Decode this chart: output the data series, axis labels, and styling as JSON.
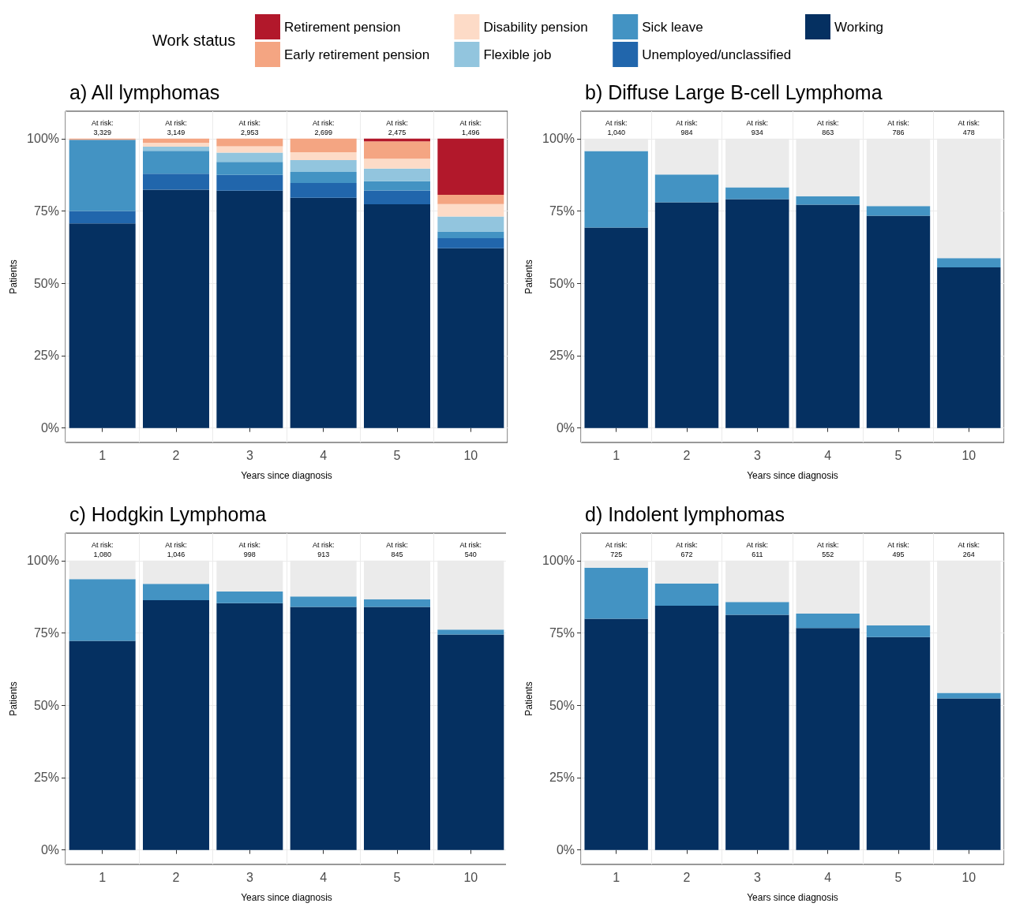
{
  "chart_data": [
    {
      "type": "bar",
      "title": "a) All lymphomas",
      "xlabel": "Years since diagnosis",
      "ylabel": "Patients",
      "legend_title": "Work status",
      "legend": "top",
      "stacked": true,
      "grid": true,
      "categories": [
        "1",
        "2",
        "3",
        "4",
        "5",
        "10"
      ],
      "ylim": [
        -5,
        109.5
      ],
      "yticks": [
        {
          "value": 0,
          "label": "0%"
        },
        {
          "value": 25,
          "label": "25%"
        },
        {
          "value": 50,
          "label": "50%"
        },
        {
          "value": 75,
          "label": "75%"
        },
        {
          "value": 100,
          "label": "100%"
        }
      ],
      "series": [
        {
          "name": "Working",
          "color": "#053061",
          "values": [
            70.7,
            82.4,
            82.0,
            79.6,
            77.3,
            62.1
          ]
        },
        {
          "name": "Unemployed/unclassified",
          "color": "#2166ac",
          "values": [
            4.3,
            5.5,
            5.5,
            5.1,
            4.8,
            3.5
          ]
        },
        {
          "name": "Sick leave",
          "color": "#4393c3",
          "values": [
            24.6,
            7.9,
            4.5,
            3.8,
            3.2,
            2.3
          ]
        },
        {
          "name": "Flexible job",
          "color": "#92c5de",
          "values": [
            0,
            1.4,
            3.2,
            4.1,
            4.4,
            5.2
          ]
        },
        {
          "name": "Disability pension",
          "color": "#fddbc7",
          "values": [
            0,
            1.4,
            2.2,
            2.7,
            3.4,
            4.3
          ]
        },
        {
          "name": "Early retirement pension",
          "color": "#f4a582",
          "values": [
            0.4,
            1.4,
            2.6,
            4.7,
            6.0,
            3.2
          ]
        },
        {
          "name": "Retirement pension",
          "color": "#b2182b",
          "values": [
            0,
            0,
            0,
            0,
            0.9,
            19.4
          ]
        }
      ],
      "annotations": [
        "At risk:\n3,329",
        "At risk:\n3,149",
        "At risk:\n2,953",
        "At risk:\n2,699",
        "At risk:\n2,475",
        "At risk:\n1,496"
      ]
    },
    {
      "type": "bar",
      "title": "b) Diffuse Large B-cell Lymphoma",
      "xlabel": "Years since diagnosis",
      "ylabel": "Patients",
      "stacked": true,
      "grid": true,
      "categories": [
        "1",
        "2",
        "3",
        "4",
        "5",
        "10"
      ],
      "ylim": [
        -5,
        109.5
      ],
      "yticks": [
        {
          "value": 0,
          "label": "0%"
        },
        {
          "value": 25,
          "label": "25%"
        },
        {
          "value": 50,
          "label": "50%"
        },
        {
          "value": 75,
          "label": "75%"
        },
        {
          "value": 100,
          "label": "100%"
        }
      ],
      "series": [
        {
          "color": "#053061",
          "values": [
            69.3,
            78.0,
            79.1,
            77.2,
            73.4,
            55.5
          ]
        },
        {
          "color": "#4393c3",
          "values": [
            26.4,
            9.6,
            4.1,
            2.9,
            3.3,
            3.2
          ]
        },
        {
          "color": "#ebebeb",
          "values": [
            4.3,
            12.4,
            16.8,
            19.9,
            23.3,
            41.3
          ]
        }
      ],
      "annotations": [
        "At risk:\n1,040",
        "At risk:\n984",
        "At risk:\n934",
        "At risk:\n863",
        "At risk:\n786",
        "At risk:\n478"
      ]
    },
    {
      "type": "bar",
      "title": "c) Hodgkin Lymphoma",
      "xlabel": "Years since diagnosis",
      "ylabel": "Patients",
      "stacked": true,
      "grid": true,
      "categories": [
        "1",
        "2",
        "3",
        "4",
        "5",
        "10"
      ],
      "ylim": [
        -5,
        109.5
      ],
      "yticks": [
        {
          "value": 0,
          "label": "0%"
        },
        {
          "value": 25,
          "label": "25%"
        },
        {
          "value": 50,
          "label": "50%"
        },
        {
          "value": 75,
          "label": "75%"
        },
        {
          "value": 100,
          "label": "100%"
        }
      ],
      "series": [
        {
          "color": "#053061",
          "values": [
            72.3,
            86.3,
            85.3,
            84.0,
            84.0,
            74.5
          ]
        },
        {
          "color": "#4393c3",
          "values": [
            21.3,
            5.7,
            4.0,
            3.6,
            2.7,
            1.7
          ]
        },
        {
          "color": "#ebebeb",
          "values": [
            6.4,
            8.0,
            10.7,
            12.4,
            13.3,
            23.8
          ]
        }
      ],
      "annotations": [
        "At risk:\n1,080",
        "At risk:\n1,046",
        "At risk:\n998",
        "At risk:\n913",
        "At risk:\n845",
        "At risk:\n540"
      ]
    },
    {
      "type": "bar",
      "title": "d) Indolent lymphomas",
      "xlabel": "Years since diagnosis",
      "ylabel": "Patients",
      "stacked": true,
      "grid": true,
      "categories": [
        "1",
        "2",
        "3",
        "4",
        "5",
        "10"
      ],
      "ylim": [
        -5,
        109.5
      ],
      "yticks": [
        {
          "value": 0,
          "label": "0%"
        },
        {
          "value": 25,
          "label": "25%"
        },
        {
          "value": 50,
          "label": "50%"
        },
        {
          "value": 75,
          "label": "75%"
        },
        {
          "value": 100,
          "label": "100%"
        }
      ],
      "series": [
        {
          "color": "#053061",
          "values": [
            79.9,
            84.4,
            81.3,
            76.7,
            73.6,
            52.4
          ]
        },
        {
          "color": "#4393c3",
          "values": [
            17.7,
            7.7,
            4.4,
            5.0,
            4.0,
            1.9
          ]
        },
        {
          "color": "#ebebeb",
          "values": [
            2.4,
            7.9,
            14.3,
            18.3,
            22.4,
            45.7
          ]
        }
      ],
      "annotations": [
        "At risk:\n725",
        "At risk:\n672",
        "At risk:\n611",
        "At risk:\n552",
        "At risk:\n495",
        "At risk:\n264"
      ]
    }
  ]
}
